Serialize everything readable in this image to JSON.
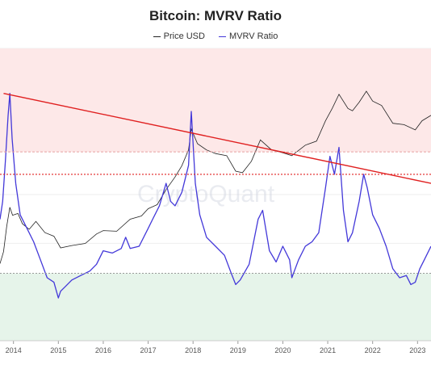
{
  "chart_data": {
    "type": "line",
    "title": "Bitcoin: MVRV Ratio",
    "watermark": "CryptoQuant",
    "legend_placement": "top-center",
    "grid": true,
    "colors": {
      "price": "#222222",
      "mvrv": "#4338d9",
      "trendline": "#e02020",
      "overvalued_zone": "#fde8e8",
      "undervalued_zone": "#e6f4ea",
      "threshold_line": "#e02020"
    },
    "x_ticks": [
      "2014",
      "2015",
      "2016",
      "2017",
      "2018",
      "2019",
      "2020",
      "2021",
      "2022",
      "2023"
    ],
    "x_range": [
      2013.7,
      2023.3
    ],
    "series": [
      {
        "name": "Price USD",
        "axis": "log",
        "y_range_log10": [
          0.9,
          5.5
        ],
        "x": [
          2013.7,
          2013.78,
          2013.85,
          2013.92,
          2013.98,
          2014.1,
          2014.2,
          2014.35,
          2014.5,
          2014.7,
          2014.9,
          2015.05,
          2015.3,
          2015.6,
          2015.85,
          2016.0,
          2016.3,
          2016.6,
          2016.85,
          2017.0,
          2017.2,
          2017.4,
          2017.6,
          2017.75,
          2017.9,
          2017.96,
          2018.1,
          2018.3,
          2018.5,
          2018.75,
          2018.95,
          2019.1,
          2019.3,
          2019.5,
          2019.75,
          2020.0,
          2020.2,
          2020.5,
          2020.75,
          2020.95,
          2021.1,
          2021.25,
          2021.45,
          2021.55,
          2021.7,
          2021.86,
          2022.0,
          2022.2,
          2022.45,
          2022.7,
          2022.95,
          2023.1,
          2023.3
        ],
        "values": [
          130,
          200,
          500,
          1000,
          750,
          800,
          550,
          450,
          600,
          400,
          350,
          230,
          250,
          270,
          380,
          430,
          420,
          650,
          730,
          950,
          1100,
          1900,
          3000,
          4500,
          8000,
          17000,
          10000,
          8000,
          7000,
          6500,
          3700,
          3500,
          5300,
          11500,
          8000,
          7200,
          6500,
          9500,
          11000,
          23000,
          36000,
          60000,
          36000,
          33000,
          45000,
          67000,
          47000,
          40000,
          21000,
          20000,
          16500,
          23000,
          28000
        ]
      },
      {
        "name": "MVRV Ratio",
        "axis": "linear",
        "y_range": [
          -0.5,
          6
        ],
        "x": [
          2013.7,
          2013.76,
          2013.82,
          2013.88,
          2013.92,
          2013.97,
          2014.05,
          2014.15,
          2014.3,
          2014.45,
          2014.6,
          2014.75,
          2014.9,
          2015.0,
          2015.05,
          2015.15,
          2015.3,
          2015.5,
          2015.7,
          2015.85,
          2016.0,
          2016.2,
          2016.4,
          2016.5,
          2016.6,
          2016.8,
          2017.0,
          2017.1,
          2017.25,
          2017.4,
          2017.5,
          2017.6,
          2017.75,
          2017.9,
          2017.96,
          2018.05,
          2018.15,
          2018.3,
          2018.5,
          2018.7,
          2018.85,
          2018.95,
          2019.05,
          2019.25,
          2019.45,
          2019.55,
          2019.7,
          2019.85,
          2020.0,
          2020.15,
          2020.2,
          2020.35,
          2020.5,
          2020.65,
          2020.8,
          2020.95,
          2021.05,
          2021.15,
          2021.25,
          2021.35,
          2021.45,
          2021.55,
          2021.7,
          2021.8,
          2021.88,
          2022.0,
          2022.15,
          2022.3,
          2022.45,
          2022.6,
          2022.75,
          2022.85,
          2022.95,
          2023.05,
          2023.15,
          2023.3
        ],
        "values": [
          2.2,
          2.6,
          3.5,
          4.5,
          5.0,
          4.0,
          3.0,
          2.3,
          2.0,
          1.7,
          1.3,
          0.9,
          0.8,
          0.45,
          0.6,
          0.7,
          0.85,
          0.95,
          1.05,
          1.2,
          1.5,
          1.45,
          1.55,
          1.8,
          1.55,
          1.6,
          2.0,
          2.2,
          2.5,
          3.0,
          2.6,
          2.5,
          2.8,
          3.4,
          4.6,
          3.0,
          2.3,
          1.8,
          1.6,
          1.4,
          1.0,
          0.75,
          0.85,
          1.2,
          2.2,
          2.4,
          1.5,
          1.25,
          1.6,
          1.3,
          0.9,
          1.3,
          1.6,
          1.7,
          1.9,
          2.9,
          3.6,
          3.2,
          3.8,
          2.4,
          1.7,
          1.9,
          2.6,
          3.2,
          2.9,
          2.3,
          2.0,
          1.6,
          1.1,
          0.9,
          0.95,
          0.75,
          0.8,
          1.1,
          1.3,
          1.6
        ]
      }
    ],
    "annotations": {
      "trendline_mvrv": {
        "from": [
          2013.78,
          5.0
        ],
        "to": [
          2023.3,
          3.0
        ]
      },
      "overvalued_zone_mvrv": [
        3.7,
        6.0
      ],
      "undervalued_zone_mvrv": [
        -0.5,
        1.0
      ],
      "upper_dotted_line_mvrv": 3.7,
      "threshold_dotted_line_mvrv": 3.2,
      "lower_dotted_line_mvrv": 1.0
    }
  }
}
